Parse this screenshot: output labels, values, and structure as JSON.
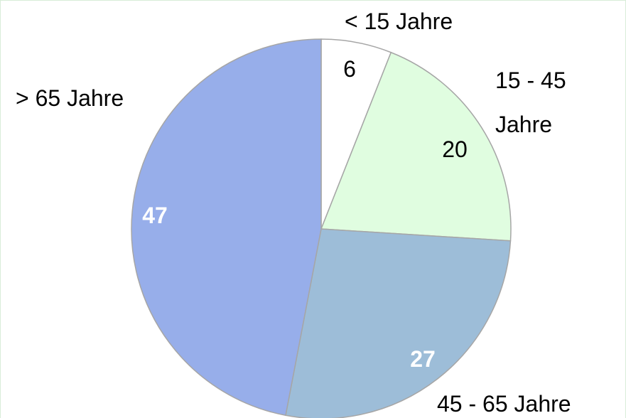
{
  "chart_data": {
    "type": "pie",
    "categories": [
      "< 15 Jahre",
      "15 - 45 Jahre",
      "45 - 65 Jahre",
      "> 65 Jahre"
    ],
    "values": [
      6,
      20,
      27,
      47
    ],
    "colors": [
      "#ffffff",
      "#e0fde0",
      "#9dbdd8",
      "#97aeea"
    ]
  }
}
